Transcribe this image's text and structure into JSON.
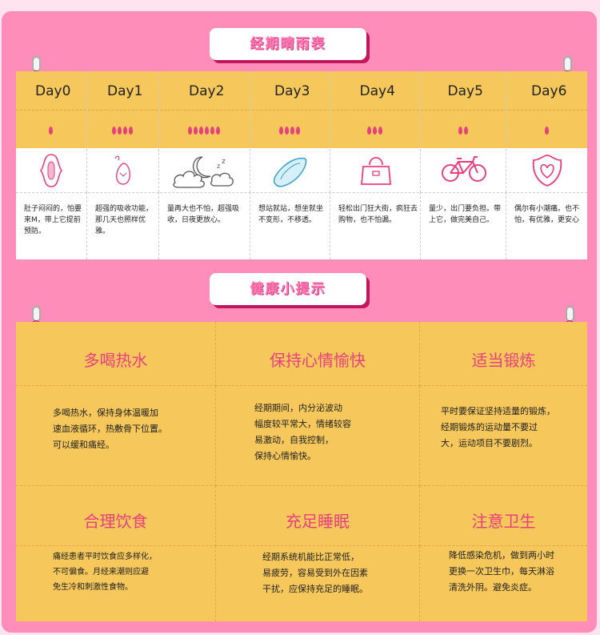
{
  "sections": {
    "period_table_title": "经期晴雨表",
    "tips_title": "健康小提示"
  },
  "days": [
    {
      "label": "Day0",
      "drops": 1,
      "icon": "pad-icon",
      "tip": "肚子闷闷的，怕要来M，带上它提前预防。"
    },
    {
      "label": "Day1",
      "drops": 4,
      "icon": "drop-heart-icon",
      "tip": "超强的吸收功能，那几天也照样优雅。"
    },
    {
      "label": "Day2",
      "drops": 6,
      "icon": "moon-cloud-icon",
      "tip": "量再大也不怕，超强吸收，日夜更放心。"
    },
    {
      "label": "Day3",
      "drops": 4,
      "icon": "liner-icon",
      "tip": "想站就站，想坐就坐不变形，不移透。"
    },
    {
      "label": "Day4",
      "drops": 3,
      "icon": "handbag-icon",
      "tip": "轻松出门狂大街，疯狂去购物，也不怕漏。"
    },
    {
      "label": "Day5",
      "drops": 2,
      "icon": "bicycle-icon",
      "tip": "量少，出门要负担。带上它，做完美自己。"
    },
    {
      "label": "Day6",
      "drops": 1,
      "icon": "heart-badge-icon",
      "tip": "偶尔有小潮痛。也不怕，有优雅，更安心"
    }
  ],
  "tips": [
    {
      "title": "多喝热水",
      "body": [
        "多喝热水，保持身体温暖加",
        "速血液循环，热敷骨下位置。",
        "可以缓和痛经。"
      ]
    },
    {
      "title": "保持心情愉快",
      "body": [
        "经期期间，内分泌波动",
        "幅度较平常大，情绪较容",
        "易激动，自我控制，",
        "保持心情愉快。"
      ]
    },
    {
      "title": "适当锻炼",
      "body": [
        "平时要保证坚持适量的锻炼，",
        "经期锻炼的运动量不要过",
        "大，运动项目不要剧烈。"
      ]
    },
    {
      "title": "合理饮食",
      "body": [
        "痛经患者平时饮食应多样化，",
        "不可偏食。月经来潮则应避",
        "免生冷和刺激性食物。"
      ]
    },
    {
      "title": "充足睡眠",
      "body": [
        "经期系统机能比正常低，",
        "易疲劳，容易受到外在因素",
        "干扰，应保持充足的睡眠。"
      ]
    },
    {
      "title": "注意卫生",
      "body": [
        "降低感染危机，做到两小时",
        "更换一次卫生巾，每天淋浴",
        "清洗外阴。避免炎症。"
      ]
    }
  ]
}
